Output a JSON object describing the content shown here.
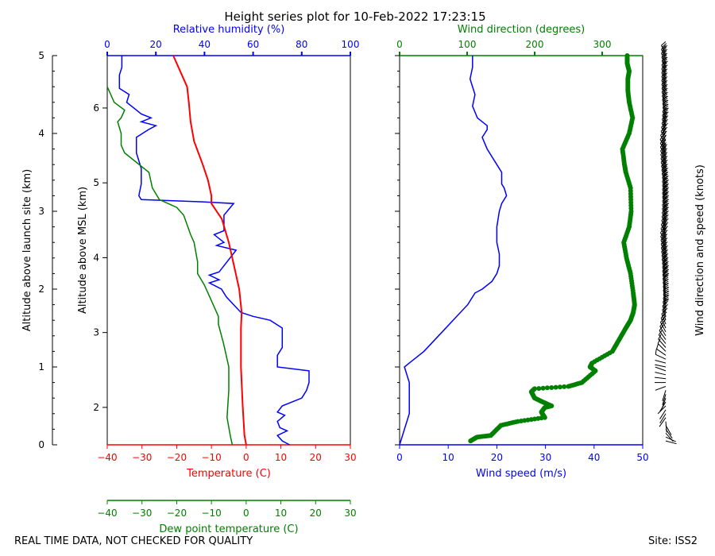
{
  "title": "Height series plot for 10-Feb-2022 17:23:15",
  "footer_left": "REAL TIME DATA, NOT CHECKED FOR QUALITY",
  "footer_right": "Site: ISS2",
  "colors": {
    "temperature": "#ff0000",
    "dewpoint": "#008000",
    "rh": "#0000ff",
    "wind_speed": "#0000ff",
    "wind_dir": "#008000",
    "barb": "#000000",
    "text": "#000000"
  },
  "chart_data": [
    {
      "type": "line",
      "name": "thermo",
      "axes": {
        "left_outer": {
          "label": "Altitude above launch site (km)",
          "range": [
            0,
            5
          ],
          "ticks": [
            0,
            1,
            2,
            3,
            4,
            5
          ]
        },
        "left_inner": {
          "label": "Altitude above MSL (km)",
          "range": [
            1.5,
            6.7
          ],
          "ticks": [
            2,
            3,
            4,
            5,
            6
          ]
        },
        "top": {
          "label": "Relative humidity (%)",
          "range": [
            0,
            100
          ],
          "ticks": [
            0,
            20,
            40,
            60,
            80,
            100
          ]
        },
        "bottom_temp": {
          "label": "Temperature (C)",
          "range": [
            -40,
            30
          ],
          "ticks": [
            -40,
            -30,
            -20,
            -10,
            0,
            10,
            20,
            30
          ]
        },
        "bottom_dew": {
          "label": "Dew point temperature (C)",
          "range": [
            -40,
            30
          ],
          "ticks": [
            -40,
            -30,
            -20,
            -10,
            0,
            10,
            20,
            30
          ]
        }
      },
      "series": [
        {
          "name": "Temperature",
          "axis": "temp",
          "points": [
            [
              0,
              0
            ],
            [
              0.12,
              -0.5
            ],
            [
              0.5,
              -1
            ],
            [
              1,
              -1.5
            ],
            [
              1.5,
              -1.5
            ],
            [
              1.7,
              -1.3
            ],
            [
              2.0,
              -2
            ],
            [
              2.3,
              -3.5
            ],
            [
              2.6,
              -5
            ],
            [
              2.9,
              -7
            ],
            [
              3.1,
              -10
            ],
            [
              3.2,
              -10
            ],
            [
              3.4,
              -11
            ],
            [
              3.6,
              -12.5
            ],
            [
              3.9,
              -15
            ],
            [
              4.15,
              -16
            ],
            [
              4.4,
              -16.5
            ],
            [
              4.6,
              -17
            ],
            [
              4.8,
              -19
            ],
            [
              5.0,
              -21
            ]
          ]
        },
        {
          "name": "Dew point",
          "axis": "temp",
          "points": [
            [
              0,
              -4
            ],
            [
              0.1,
              -4.5
            ],
            [
              0.35,
              -5.5
            ],
            [
              0.7,
              -5
            ],
            [
              1.0,
              -5
            ],
            [
              1.3,
              -6.5
            ],
            [
              1.55,
              -8
            ],
            [
              1.65,
              -8
            ],
            [
              1.9,
              -10.5
            ],
            [
              2.05,
              -12
            ],
            [
              2.2,
              -14
            ],
            [
              2.35,
              -14
            ],
            [
              2.6,
              -15
            ],
            [
              2.7,
              -16
            ],
            [
              2.95,
              -18
            ],
            [
              3.05,
              -20
            ],
            [
              3.15,
              -25
            ],
            [
              3.3,
              -27
            ],
            [
              3.5,
              -28
            ],
            [
              3.75,
              -35
            ],
            [
              3.85,
              -36
            ],
            [
              4.0,
              -36
            ],
            [
              4.15,
              -37
            ],
            [
              4.2,
              -36
            ],
            [
              4.3,
              -35
            ],
            [
              4.4,
              -38
            ],
            [
              4.5,
              -39
            ],
            [
              4.6,
              -40
            ]
          ]
        },
        {
          "name": "Relative humidity",
          "axis": "rh",
          "points": [
            [
              0,
              75
            ],
            [
              0.05,
              72
            ],
            [
              0.12,
              70
            ],
            [
              0.18,
              74
            ],
            [
              0.22,
              71
            ],
            [
              0.3,
              70
            ],
            [
              0.38,
              73
            ],
            [
              0.42,
              70
            ],
            [
              0.5,
              72
            ],
            [
              0.6,
              80
            ],
            [
              0.7,
              82
            ],
            [
              0.8,
              83
            ],
            [
              0.95,
              83
            ],
            [
              1.0,
              70
            ],
            [
              1.15,
              70
            ],
            [
              1.25,
              72
            ],
            [
              1.4,
              72
            ],
            [
              1.5,
              72
            ],
            [
              1.6,
              67
            ],
            [
              1.65,
              60
            ],
            [
              1.7,
              55
            ],
            [
              1.8,
              52
            ],
            [
              1.9,
              49
            ],
            [
              2.0,
              47
            ],
            [
              2.08,
              42
            ],
            [
              2.12,
              46
            ],
            [
              2.18,
              42
            ],
            [
              2.22,
              46
            ],
            [
              2.3,
              48
            ],
            [
              2.5,
              53
            ],
            [
              2.56,
              45
            ],
            [
              2.6,
              48
            ],
            [
              2.7,
              44
            ],
            [
              2.75,
              48
            ],
            [
              2.95,
              48
            ],
            [
              3.1,
              52
            ],
            [
              3.12,
              40
            ],
            [
              3.15,
              14
            ],
            [
              3.2,
              13
            ],
            [
              3.35,
              14
            ],
            [
              3.55,
              14
            ],
            [
              3.75,
              12
            ],
            [
              3.95,
              12
            ],
            [
              4.05,
              17
            ],
            [
              4.1,
              20
            ],
            [
              4.15,
              14
            ],
            [
              4.2,
              18
            ],
            [
              4.25,
              14
            ],
            [
              4.3,
              12
            ],
            [
              4.4,
              8
            ],
            [
              4.5,
              9
            ],
            [
              4.58,
              5
            ],
            [
              4.65,
              5
            ],
            [
              4.75,
              5
            ],
            [
              4.85,
              6
            ],
            [
              5.0,
              6
            ]
          ]
        }
      ]
    },
    {
      "type": "line",
      "name": "wind",
      "axes": {
        "top": {
          "label": "Wind direction (degrees)",
          "range": [
            0,
            360
          ],
          "ticks": [
            0,
            100,
            200,
            300
          ]
        },
        "bottom": {
          "label": "Wind speed (m/s)",
          "range": [
            0,
            50
          ],
          "ticks": [
            0,
            10,
            20,
            30,
            40,
            50
          ]
        },
        "right": {
          "label": "Wind direction and speed (knots)"
        }
      },
      "series": [
        {
          "name": "Wind speed",
          "axis": "speed",
          "points": [
            [
              0,
              0
            ],
            [
              0.2,
              1
            ],
            [
              0.4,
              2
            ],
            [
              0.6,
              2
            ],
            [
              0.8,
              2
            ],
            [
              1.0,
              1
            ],
            [
              1.05,
              2
            ],
            [
              1.2,
              5
            ],
            [
              1.4,
              8
            ],
            [
              1.6,
              11
            ],
            [
              1.8,
              14
            ],
            [
              1.95,
              15.5
            ],
            [
              2.0,
              17
            ],
            [
              2.1,
              19
            ],
            [
              2.2,
              20
            ],
            [
              2.3,
              20.5
            ],
            [
              2.45,
              20.5
            ],
            [
              2.6,
              20
            ],
            [
              2.8,
              20
            ],
            [
              3.0,
              20.5
            ],
            [
              3.1,
              21
            ],
            [
              3.2,
              22
            ],
            [
              3.3,
              21.5
            ],
            [
              3.35,
              21
            ],
            [
              3.5,
              21
            ],
            [
              3.6,
              20
            ],
            [
              3.8,
              18
            ],
            [
              3.95,
              17
            ],
            [
              4.05,
              18
            ],
            [
              4.1,
              18
            ],
            [
              4.2,
              16
            ],
            [
              4.35,
              15
            ],
            [
              4.5,
              15.5
            ],
            [
              4.7,
              14.5
            ],
            [
              4.85,
              15
            ],
            [
              5.0,
              15
            ]
          ]
        },
        {
          "name": "Wind direction",
          "axis": "dir",
          "points": [
            [
              0.05,
              105
            ],
            [
              0.1,
              115
            ],
            [
              0.12,
              135
            ],
            [
              0.25,
              150
            ],
            [
              0.3,
              175
            ],
            [
              0.35,
              215
            ],
            [
              0.42,
              210
            ],
            [
              0.48,
              215
            ],
            [
              0.5,
              225
            ],
            [
              0.55,
              212
            ],
            [
              0.6,
              200
            ],
            [
              0.68,
              195
            ],
            [
              0.72,
              200
            ],
            [
              0.75,
              250
            ],
            [
              0.8,
              270
            ],
            [
              0.95,
              290
            ],
            [
              1.0,
              282
            ],
            [
              1.05,
              285
            ],
            [
              1.2,
              315
            ],
            [
              1.35,
              325
            ],
            [
              1.5,
              335
            ],
            [
              1.6,
              342
            ],
            [
              1.7,
              346
            ],
            [
              1.8,
              348
            ],
            [
              1.95,
              346
            ],
            [
              2.2,
              342
            ],
            [
              2.4,
              336
            ],
            [
              2.6,
              332
            ],
            [
              2.8,
              340
            ],
            [
              3.0,
              343
            ],
            [
              3.3,
              342
            ],
            [
              3.5,
              335
            ],
            [
              3.6,
              333
            ],
            [
              3.8,
              330
            ],
            [
              4.0,
              340
            ],
            [
              4.2,
              345
            ],
            [
              4.4,
              340
            ],
            [
              4.55,
              338
            ],
            [
              4.7,
              338
            ],
            [
              4.8,
              340
            ],
            [
              4.9,
              337
            ],
            [
              5.0,
              337
            ]
          ]
        }
      ]
    }
  ]
}
